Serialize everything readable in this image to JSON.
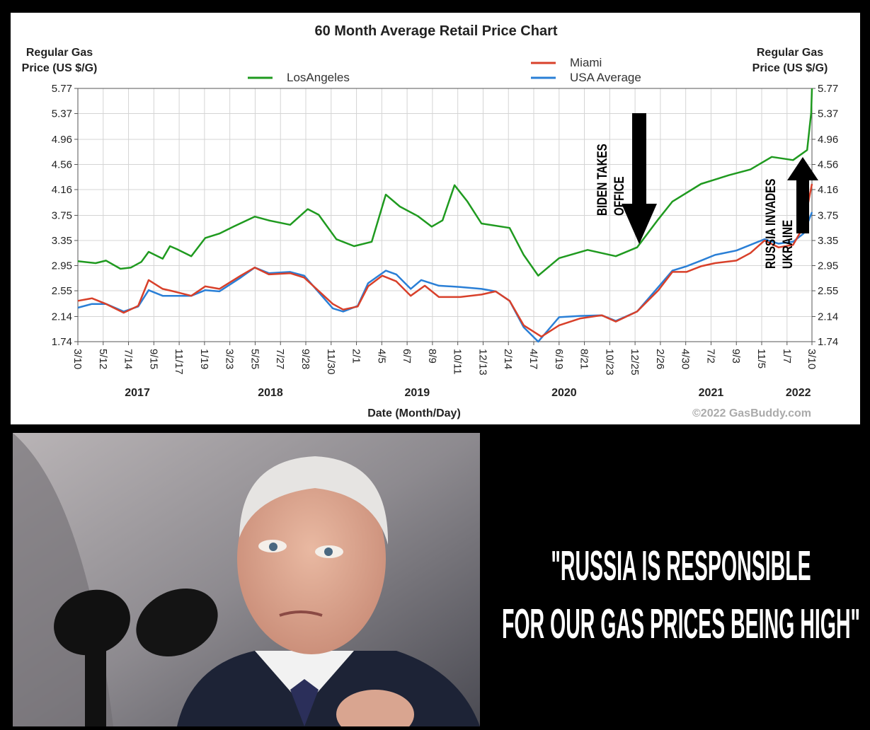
{
  "chart_data": {
    "type": "line",
    "title": "60 Month Average Retail Price Chart",
    "y_label": [
      "Regular Gas",
      "Price (US $/G)"
    ],
    "y2_label": [
      "Regular Gas",
      "Price (US $/G)"
    ],
    "x_label": "Date (Month/Day)",
    "source": "©2022 GasBuddy.com",
    "xlim": [
      "2017-03-10",
      "2022-03-10"
    ],
    "xticks": [
      {
        "value": "2017-03-10",
        "label": "3/10"
      },
      {
        "value": "2017-05-12",
        "label": "5/12"
      },
      {
        "value": "2017-07-14",
        "label": "7/14"
      },
      {
        "value": "2017-09-15",
        "label": "9/15"
      },
      {
        "value": "2017-11-17",
        "label": "11/17"
      },
      {
        "value": "2018-01-19",
        "label": "1/19"
      },
      {
        "value": "2018-03-23",
        "label": "3/23"
      },
      {
        "value": "2018-05-25",
        "label": "5/25"
      },
      {
        "value": "2018-07-27",
        "label": "7/27"
      },
      {
        "value": "2018-09-28",
        "label": "9/28"
      },
      {
        "value": "2018-11-30",
        "label": "11/30"
      },
      {
        "value": "2019-02-01",
        "label": "2/1"
      },
      {
        "value": "2019-04-05",
        "label": "4/5"
      },
      {
        "value": "2019-06-07",
        "label": "6/7"
      },
      {
        "value": "2019-08-09",
        "label": "8/9"
      },
      {
        "value": "2019-10-11",
        "label": "10/11"
      },
      {
        "value": "2019-12-13",
        "label": "12/13"
      },
      {
        "value": "2020-02-14",
        "label": "2/14"
      },
      {
        "value": "2020-04-17",
        "label": "4/17"
      },
      {
        "value": "2020-06-19",
        "label": "6/19"
      },
      {
        "value": "2020-08-21",
        "label": "8/21"
      },
      {
        "value": "2020-10-23",
        "label": "10/23"
      },
      {
        "value": "2020-12-25",
        "label": "12/25"
      },
      {
        "value": "2021-02-26",
        "label": "2/26"
      },
      {
        "value": "2021-04-30",
        "label": "4/30"
      },
      {
        "value": "2021-07-02",
        "label": "7/2"
      },
      {
        "value": "2021-09-03",
        "label": "9/3"
      },
      {
        "value": "2021-11-05",
        "label": "11/5"
      },
      {
        "value": "2022-01-07",
        "label": "1/7"
      },
      {
        "value": "2022-03-10",
        "label": "3/10"
      }
    ],
    "years": [
      "2017",
      "2018",
      "2019",
      "2020",
      "2021",
      "2022"
    ],
    "ylim": [
      1.74,
      5.77
    ],
    "yticks": [
      1.74,
      2.14,
      2.55,
      2.95,
      3.35,
      3.75,
      4.16,
      4.56,
      4.96,
      5.37,
      5.77
    ],
    "y2lim": [
      1.74,
      5.77
    ],
    "y2ticks": [
      1.74,
      2.14,
      2.55,
      2.95,
      3.35,
      3.75,
      4.16,
      4.56,
      4.96,
      5.37,
      5.77
    ],
    "grid": true,
    "series": [
      {
        "name": "LosAngeles",
        "color": "#1f9a1f",
        "x": [
          "2017-03-10",
          "2017-04-23",
          "2017-05-19",
          "2017-06-24",
          "2017-07-20",
          "2017-08-15",
          "2017-09-02",
          "2017-10-07",
          "2017-10-25",
          "2017-11-12",
          "2017-12-17",
          "2018-01-21",
          "2018-02-25",
          "2018-04-01",
          "2018-05-24",
          "2018-06-28",
          "2018-08-20",
          "2018-10-03",
          "2018-10-30",
          "2018-12-13",
          "2019-01-26",
          "2019-03-11",
          "2019-04-15",
          "2019-05-20",
          "2019-07-03",
          "2019-08-07",
          "2019-09-03",
          "2019-10-03",
          "2019-11-04",
          "2019-12-09",
          "2020-02-17",
          "2020-03-23",
          "2020-04-28",
          "2020-06-19",
          "2020-08-29",
          "2020-11-07",
          "2020-12-30",
          "2021-02-21",
          "2021-03-28",
          "2021-06-07",
          "2021-08-16",
          "2021-10-08",
          "2021-11-30",
          "2022-01-22",
          "2022-02-26",
          "2022-03-08",
          "2022-03-10"
        ],
        "values": [
          3.02,
          2.99,
          3.03,
          2.9,
          2.92,
          3.01,
          3.17,
          3.06,
          3.26,
          3.21,
          3.1,
          3.39,
          3.46,
          3.57,
          3.73,
          3.67,
          3.6,
          3.85,
          3.76,
          3.37,
          3.26,
          3.33,
          4.08,
          3.89,
          3.74,
          3.57,
          3.67,
          4.23,
          3.97,
          3.62,
          3.55,
          3.12,
          2.79,
          3.07,
          3.2,
          3.1,
          3.24,
          3.69,
          3.97,
          4.25,
          4.39,
          4.48,
          4.68,
          4.63,
          4.79,
          5.38,
          5.77
        ]
      },
      {
        "name": "Miami",
        "color": "#d8402a",
        "x": [
          "2017-03-10",
          "2017-04-14",
          "2017-05-19",
          "2017-07-02",
          "2017-08-07",
          "2017-09-02",
          "2017-10-07",
          "2017-11-03",
          "2017-12-17",
          "2018-01-21",
          "2018-02-25",
          "2018-04-19",
          "2018-05-24",
          "2018-06-28",
          "2018-08-20",
          "2018-09-24",
          "2018-12-04",
          "2018-12-30",
          "2019-02-04",
          "2019-03-02",
          "2019-04-06",
          "2019-05-11",
          "2019-06-16",
          "2019-07-21",
          "2019-08-25",
          "2019-10-17",
          "2019-12-09",
          "2020-01-13",
          "2020-02-17",
          "2020-03-23",
          "2020-05-06",
          "2020-06-19",
          "2020-08-11",
          "2020-10-03",
          "2020-11-07",
          "2020-12-30",
          "2021-02-21",
          "2021-03-28",
          "2021-05-02",
          "2021-06-07",
          "2021-07-12",
          "2021-09-03",
          "2021-10-08",
          "2021-11-12",
          "2021-12-17",
          "2022-01-22",
          "2022-02-17",
          "2022-03-10"
        ],
        "values": [
          2.39,
          2.43,
          2.34,
          2.2,
          2.31,
          2.72,
          2.58,
          2.54,
          2.47,
          2.62,
          2.58,
          2.79,
          2.92,
          2.81,
          2.83,
          2.76,
          2.34,
          2.25,
          2.3,
          2.62,
          2.79,
          2.7,
          2.47,
          2.63,
          2.45,
          2.45,
          2.49,
          2.54,
          2.39,
          2.0,
          1.82,
          2.0,
          2.11,
          2.16,
          2.06,
          2.22,
          2.56,
          2.85,
          2.85,
          2.94,
          2.99,
          3.03,
          3.15,
          3.35,
          3.24,
          3.28,
          3.57,
          4.25
        ]
      },
      {
        "name": "USA Average",
        "color": "#2a7fd6",
        "x": [
          "2017-03-10",
          "2017-04-14",
          "2017-05-19",
          "2017-07-02",
          "2017-08-07",
          "2017-09-02",
          "2017-10-07",
          "2017-11-03",
          "2017-12-17",
          "2018-01-21",
          "2018-02-25",
          "2018-04-19",
          "2018-05-24",
          "2018-06-28",
          "2018-08-20",
          "2018-09-24",
          "2018-12-04",
          "2018-12-30",
          "2019-02-04",
          "2019-03-02",
          "2019-04-15",
          "2019-05-11",
          "2019-06-16",
          "2019-07-12",
          "2019-08-25",
          "2019-10-17",
          "2019-12-09",
          "2020-01-13",
          "2020-02-17",
          "2020-03-23",
          "2020-04-28",
          "2020-06-19",
          "2020-08-11",
          "2020-10-03",
          "2020-11-07",
          "2020-12-30",
          "2021-02-21",
          "2021-03-28",
          "2021-05-02",
          "2021-06-07",
          "2021-07-12",
          "2021-09-03",
          "2021-10-08",
          "2021-11-12",
          "2021-12-17",
          "2022-01-22",
          "2022-02-17",
          "2022-03-10"
        ],
        "values": [
          2.28,
          2.34,
          2.34,
          2.22,
          2.3,
          2.56,
          2.47,
          2.47,
          2.47,
          2.56,
          2.54,
          2.76,
          2.92,
          2.83,
          2.85,
          2.79,
          2.27,
          2.22,
          2.31,
          2.67,
          2.87,
          2.81,
          2.58,
          2.72,
          2.63,
          2.61,
          2.58,
          2.54,
          2.39,
          1.97,
          1.74,
          2.13,
          2.15,
          2.16,
          2.07,
          2.22,
          2.61,
          2.87,
          2.94,
          3.03,
          3.12,
          3.19,
          3.28,
          3.37,
          3.3,
          3.33,
          3.46,
          3.8
        ]
      }
    ],
    "annotations": [
      {
        "text": [
          "BIDEN TAKES",
          "OFFICE"
        ]
      },
      {
        "text": [
          "RUSSIA INVADES",
          "UKRAINE"
        ]
      }
    ]
  },
  "caption": [
    "\"RUSSIA IS RESPONSIBLE",
    "FOR OUR GAS PRICES BEING HIGH\""
  ]
}
